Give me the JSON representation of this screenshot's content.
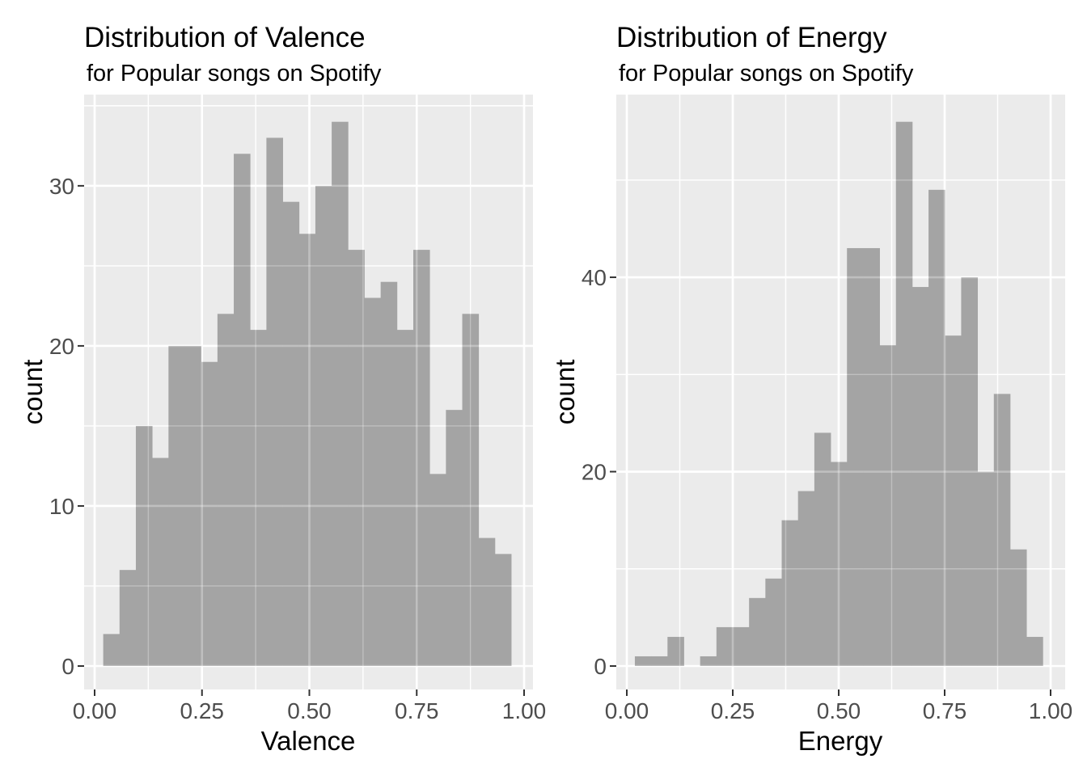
{
  "page": {
    "background": "#FFFFFF"
  },
  "colors": {
    "panel_background": "#EBEBEB",
    "gridline": "#FFFFFF",
    "bar_fill": "#A4A4A4",
    "tick_mark": "#333333",
    "tick_label": "#4D4D4D",
    "text": "#000000"
  },
  "chart_data": [
    {
      "type": "bar",
      "subtype": "histogram",
      "title": "Distribution of Valence",
      "subtitle": "for Popular songs on Spotify",
      "xlabel": "Valence",
      "ylabel": "count",
      "bin_start": 0.02,
      "bin_width": 0.038,
      "counts": [
        2,
        6,
        15,
        13,
        20,
        20,
        19,
        22,
        32,
        21,
        33,
        29,
        27,
        30,
        34,
        26,
        23,
        24,
        21,
        26,
        12,
        16,
        22,
        8,
        7
      ],
      "total_count": 508,
      "x_tick_labels": [
        "0.00",
        "0.25",
        "0.50",
        "0.75",
        "1.00"
      ],
      "x_tick_values": [
        0,
        0.25,
        0.5,
        0.75,
        1.0
      ],
      "x_minor_values": [
        0.125,
        0.375,
        0.625,
        0.875
      ],
      "y_tick_labels": [
        "0",
        "10",
        "20",
        "30"
      ],
      "y_tick_values": [
        0,
        10,
        20,
        30
      ],
      "y_minor_values": [
        5,
        15,
        25,
        35
      ],
      "xlim": [
        0,
        1
      ],
      "ylim_top": 35.7,
      "grid": true,
      "legend": "none"
    },
    {
      "type": "bar",
      "subtype": "histogram",
      "title": "Distribution of Energy",
      "subtitle": "for Popular songs on Spotify",
      "xlabel": "Energy",
      "ylabel": "count",
      "bin_start": 0.019,
      "bin_width": 0.0385,
      "counts": [
        1,
        1,
        3,
        0,
        1,
        4,
        4,
        7,
        9,
        15,
        18,
        24,
        21,
        43,
        43,
        33,
        56,
        39,
        49,
        34,
        40,
        20,
        28,
        12,
        3
      ],
      "total_count": 508,
      "x_tick_labels": [
        "0.00",
        "0.25",
        "0.50",
        "0.75",
        "1.00"
      ],
      "x_tick_values": [
        0,
        0.25,
        0.5,
        0.75,
        1.0
      ],
      "x_minor_values": [
        0.125,
        0.375,
        0.625,
        0.875
      ],
      "y_tick_labels": [
        "0",
        "20",
        "40"
      ],
      "y_tick_values": [
        0,
        20,
        40
      ],
      "y_minor_values": [
        10,
        30,
        50
      ],
      "xlim": [
        0,
        1
      ],
      "ylim_top": 58.8,
      "grid": true,
      "legend": "none"
    }
  ]
}
